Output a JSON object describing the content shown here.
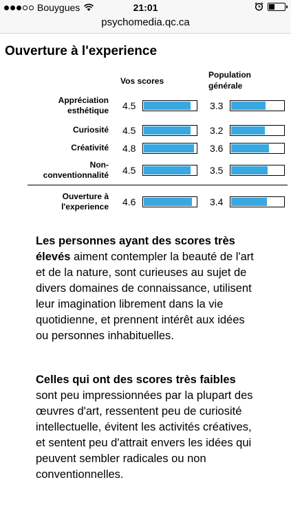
{
  "status": {
    "carrier": "Bouygues",
    "time": "21:01",
    "signal_bars": 3,
    "battery_level": 0.35
  },
  "browser": {
    "url": "psychomedia.qc.ca"
  },
  "page": {
    "title": "Ouverture à l'experience",
    "col_you": "Vos scores",
    "col_pop_line1": "Population",
    "col_pop_line2": "générale",
    "scale_max": 5,
    "rows": [
      {
        "label_line1": "Appréciation",
        "label_line2": "esthétique",
        "you": "4.5",
        "pop": "3.3"
      },
      {
        "label_line1": "Curiosité",
        "label_line2": "",
        "you": "4.5",
        "pop": "3.2"
      },
      {
        "label_line1": "Créativité",
        "label_line2": "",
        "you": "4.8",
        "pop": "3.6"
      },
      {
        "label_line1": "Non-",
        "label_line2": "conventionnalité",
        "you": "4.5",
        "pop": "3.5"
      }
    ],
    "total": {
      "label_line1": "Ouverture à",
      "label_line2": "l'experience",
      "you": "4.6",
      "pop": "3.4"
    },
    "high_bold": "Les personnes ayant des scores très élevés",
    "high_text": " aiment contempler la beauté de l'art et de la nature, sont curieuses au sujet de divers domaines de connaissance, utilisent leur imagination librement dans la vie quotidienne, et prennent intérêt aux idées ou personnes inhabituelles.",
    "low_bold": "Celles qui ont des scores très faibles",
    "low_text": " sont peu impressionnées par la plupart des œuvres d'art, ressentent peu de curiosité intellectuelle, évitent les activités créatives, et sentent peu d'attrait envers les idées qui peuvent sembler radicales ou non conventionnelles."
  },
  "colors": {
    "bar_fill": "#3aa8e0"
  }
}
